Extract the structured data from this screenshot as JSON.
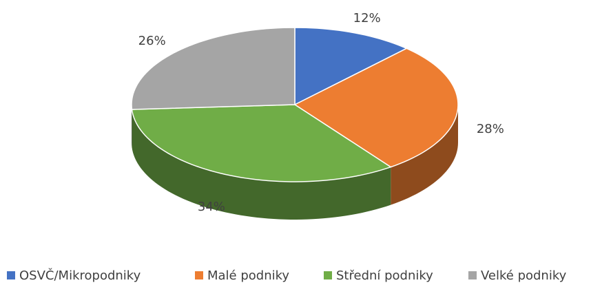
{
  "chart_data": {
    "type": "pie3d",
    "categories": [
      "OSVČ/Mikropodniky",
      "Malé podniky",
      "Střední podniky",
      "Velké podniky"
    ],
    "values": [
      12,
      28,
      34,
      26
    ],
    "value_labels": [
      "12%",
      "28%",
      "34%",
      "26%"
    ],
    "colors": [
      "#4472c4",
      "#ed7d31",
      "#70ad47",
      "#a5a5a5"
    ],
    "legend": "bottom"
  }
}
